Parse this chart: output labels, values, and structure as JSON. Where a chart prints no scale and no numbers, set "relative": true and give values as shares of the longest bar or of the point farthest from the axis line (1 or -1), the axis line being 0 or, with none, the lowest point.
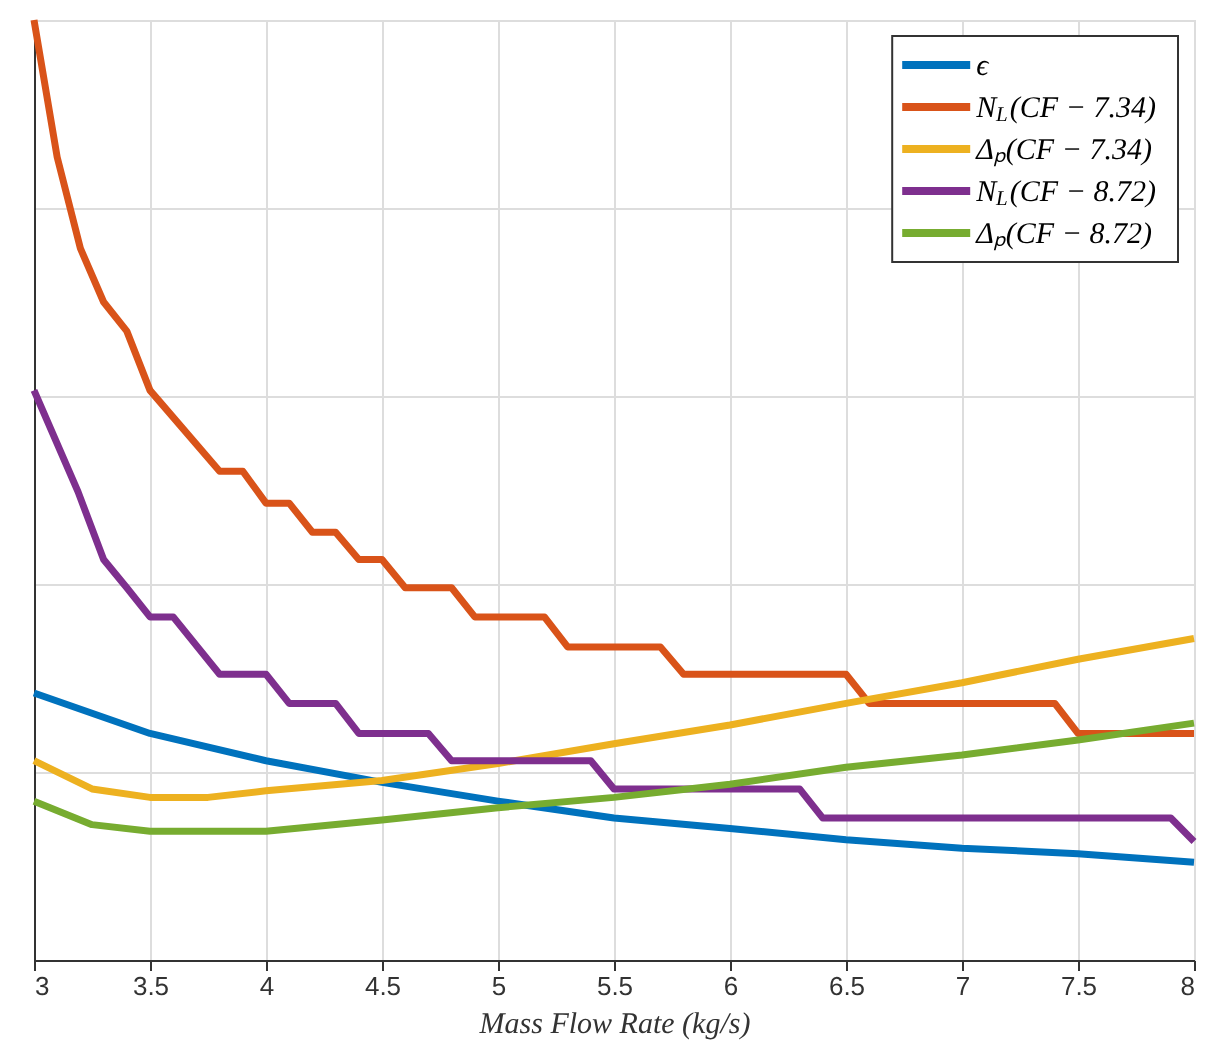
{
  "chart_data": {
    "type": "line",
    "relative": true,
    "xlabel": "Mass Flow Rate (kg/s)",
    "xlim": [
      3,
      8
    ],
    "xticks": [
      3,
      3.5,
      4,
      4.5,
      5,
      5.5,
      6,
      6.5,
      7,
      7.5,
      8
    ],
    "grid": true,
    "legend": "top right",
    "line_style": "solid",
    "marker": "none",
    "series": [
      {
        "name": "ϵ",
        "color": "#0072bd",
        "x": [
          3,
          3.5,
          4,
          4.5,
          5,
          5.5,
          6,
          6.5,
          7,
          7.5,
          8
        ],
        "values": [
          0.284,
          0.241,
          0.212,
          0.189,
          0.169,
          0.151,
          0.14,
          0.128,
          0.119,
          0.113,
          0.104
        ]
      },
      {
        "name": "N$_{L}$(CF − 7.34)",
        "color": "#d95319",
        "x": [
          3,
          3.1,
          3.2,
          3.3,
          3.4,
          3.5,
          3.8,
          3.9,
          4.0,
          4.1,
          4.2,
          4.3,
          4.4,
          4.5,
          4.6,
          4.8,
          4.9,
          5.2,
          5.3,
          5.7,
          5.8,
          6.5,
          6.6,
          7.4,
          7.5,
          8
        ],
        "values": [
          1.0,
          0.854,
          0.757,
          0.7,
          0.669,
          0.606,
          0.52,
          0.52,
          0.486,
          0.486,
          0.455,
          0.455,
          0.426,
          0.426,
          0.396,
          0.396,
          0.365,
          0.365,
          0.333,
          0.333,
          0.304,
          0.304,
          0.273,
          0.273,
          0.241,
          0.241
        ]
      },
      {
        "name": "Δₚ(CF − 7.34)",
        "color": "#edb120",
        "x": [
          3,
          3.25,
          3.5,
          3.75,
          4,
          4.5,
          5,
          5.5,
          6,
          6.5,
          7,
          7.5,
          8
        ],
        "values": [
          0.212,
          0.182,
          0.173,
          0.173,
          0.18,
          0.191,
          0.209,
          0.23,
          0.25,
          0.273,
          0.295,
          0.32,
          0.342
        ]
      },
      {
        "name": "N$_{L}$(CF − 8.72)",
        "color": "#7e2f8e",
        "x": [
          3,
          3.19,
          3.3,
          3.4,
          3.5,
          3.6,
          3.8,
          4.0,
          4.1,
          4.3,
          4.4,
          4.7,
          4.8,
          5.4,
          5.5,
          6.3,
          6.4,
          7.9,
          8
        ],
        "values": [
          0.606,
          0.498,
          0.426,
          0.396,
          0.365,
          0.365,
          0.304,
          0.304,
          0.273,
          0.273,
          0.241,
          0.241,
          0.212,
          0.212,
          0.182,
          0.182,
          0.151,
          0.151,
          0.126
        ]
      },
      {
        "name": "Δₚ(CF − 8.72)",
        "color": "#77ac30",
        "x": [
          3,
          3.25,
          3.5,
          4,
          4.5,
          5,
          5.5,
          6,
          6.5,
          7,
          7.5,
          8
        ],
        "values": [
          0.169,
          0.144,
          0.137,
          0.137,
          0.149,
          0.162,
          0.173,
          0.187,
          0.205,
          0.218,
          0.234,
          0.252
        ]
      }
    ]
  }
}
